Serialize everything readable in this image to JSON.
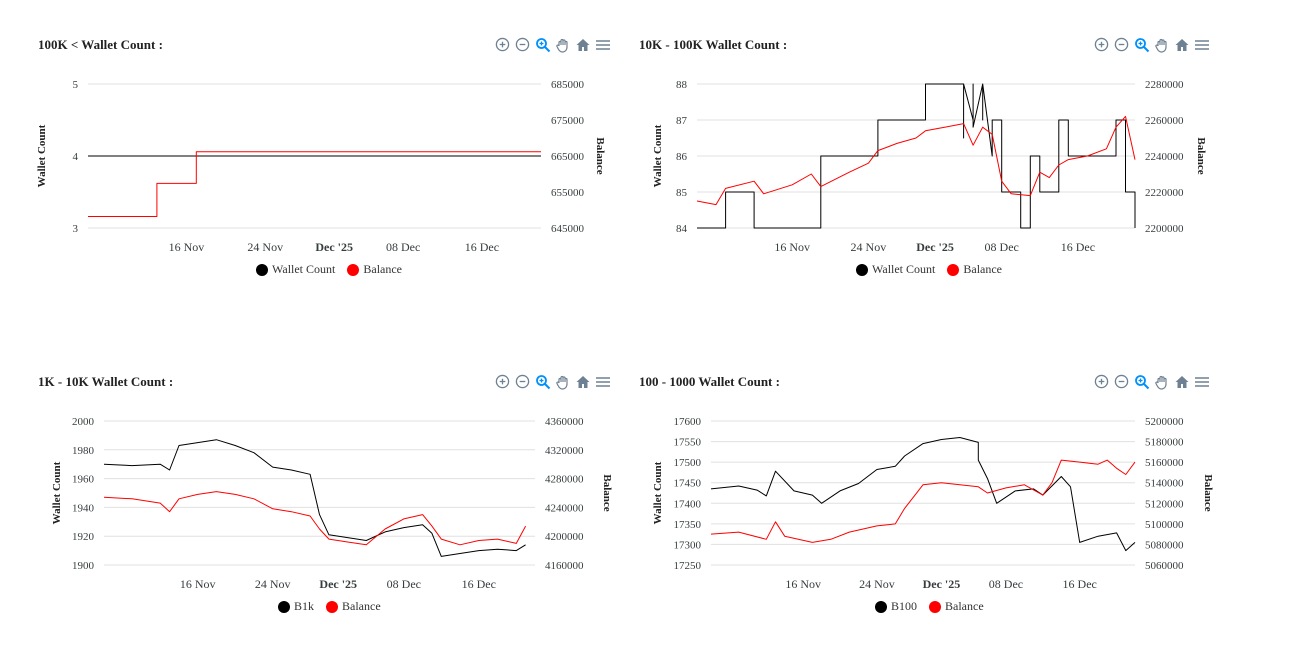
{
  "charts": [
    {
      "id": "c1",
      "title": "100K < Wallet Count :",
      "type": "line",
      "x_range": [
        "2025-11-06",
        "2025-12-22"
      ],
      "x_ticks": [
        "16 Nov",
        "24 Nov",
        "Dec '25",
        "08 Dec",
        "16 Dec"
      ],
      "y_left": {
        "label": "Wallet Count",
        "min": 3,
        "max": 5,
        "ticks": [
          "5",
          "4",
          "3"
        ]
      },
      "y_right": {
        "label": "Balance",
        "min": 645000,
        "max": 685000,
        "ticks": [
          "685000",
          "675000",
          "665000",
          "655000",
          "645000"
        ]
      },
      "series": [
        {
          "name": "Wallet Count",
          "color": "#000000",
          "axis": "left",
          "points": [
            [
              "2025-11-06",
              4
            ],
            [
              "2025-12-22",
              4
            ]
          ]
        },
        {
          "name": "Balance",
          "color": "#ff0000",
          "axis": "right",
          "points": [
            [
              "2025-11-06",
              648200
            ],
            [
              "2025-11-13",
              648200
            ],
            [
              "2025-11-13",
              657400
            ],
            [
              "2025-11-17",
              657400
            ],
            [
              "2025-11-17",
              666200
            ],
            [
              "2025-12-22",
              666200
            ]
          ]
        }
      ]
    },
    {
      "id": "c2",
      "title": "10K - 100K Wallet Count :",
      "type": "line",
      "x_range": [
        "2025-11-06",
        "2025-12-22"
      ],
      "x_ticks": [
        "16 Nov",
        "24 Nov",
        "Dec '25",
        "08 Dec",
        "16 Dec"
      ],
      "y_left": {
        "label": "Wallet Count",
        "min": 84,
        "max": 88,
        "ticks": [
          "88",
          "87",
          "86",
          "85",
          "84"
        ]
      },
      "y_right": {
        "label": "Balance",
        "min": 2200000,
        "max": 2280000,
        "ticks": [
          "2280000",
          "2260000",
          "2240000",
          "2220000",
          "2200000"
        ]
      },
      "series": [
        {
          "name": "Wallet Count",
          "color": "#000000",
          "axis": "left",
          "points": [
            [
              "2025-11-06",
              84
            ],
            [
              "2025-11-09",
              84
            ],
            [
              "2025-11-09",
              85
            ],
            [
              "2025-11-12",
              85
            ],
            [
              "2025-11-12",
              84
            ],
            [
              "2025-11-19",
              84
            ],
            [
              "2025-11-19",
              86
            ],
            [
              "2025-11-25",
              86
            ],
            [
              "2025-11-25",
              87
            ],
            [
              "2025-11-30",
              87
            ],
            [
              "2025-11-30",
              88
            ],
            [
              "2025-12-04",
              88
            ],
            [
              "2025-12-04",
              86.5
            ],
            [
              "2025-12-04",
              88
            ],
            [
              "2025-12-05",
              87
            ],
            [
              "2025-12-05",
              88
            ],
            [
              "2025-12-05",
              86.8
            ],
            [
              "2025-12-06",
              88
            ],
            [
              "2025-12-06",
              87
            ],
            [
              "2025-12-06",
              88
            ],
            [
              "2025-12-07",
              86
            ],
            [
              "2025-12-07",
              87
            ],
            [
              "2025-12-08",
              87
            ],
            [
              "2025-12-08",
              85
            ],
            [
              "2025-12-10",
              85
            ],
            [
              "2025-12-10",
              84
            ],
            [
              "2025-12-11",
              84
            ],
            [
              "2025-12-11",
              86
            ],
            [
              "2025-12-12",
              86
            ],
            [
              "2025-12-12",
              85
            ],
            [
              "2025-12-14",
              85
            ],
            [
              "2025-12-14",
              87
            ],
            [
              "2025-12-15",
              87
            ],
            [
              "2025-12-15",
              86
            ],
            [
              "2025-12-20",
              86
            ],
            [
              "2025-12-20",
              87
            ],
            [
              "2025-12-21",
              87
            ],
            [
              "2025-12-21",
              85
            ],
            [
              "2025-12-22",
              85
            ],
            [
              "2025-12-22",
              84
            ]
          ]
        },
        {
          "name": "Balance",
          "color": "#ff0000",
          "axis": "right",
          "points": [
            [
              "2025-11-06",
              2215000
            ],
            [
              "2025-11-08",
              2213000
            ],
            [
              "2025-11-09",
              2222000
            ],
            [
              "2025-11-12",
              2226000
            ],
            [
              "2025-11-13",
              2219000
            ],
            [
              "2025-11-16",
              2224000
            ],
            [
              "2025-11-18",
              2230000
            ],
            [
              "2025-11-19",
              2223000
            ],
            [
              "2025-11-22",
              2231000
            ],
            [
              "2025-11-24",
              2236000
            ],
            [
              "2025-11-25",
              2243000
            ],
            [
              "2025-11-27",
              2247000
            ],
            [
              "2025-11-29",
              2250000
            ],
            [
              "2025-11-30",
              2254000
            ],
            [
              "2025-12-02",
              2256000
            ],
            [
              "2025-12-04",
              2258000
            ],
            [
              "2025-12-05",
              2246000
            ],
            [
              "2025-12-06",
              2256000
            ],
            [
              "2025-12-07",
              2252000
            ],
            [
              "2025-12-08",
              2226000
            ],
            [
              "2025-12-09",
              2219000
            ],
            [
              "2025-12-11",
              2218000
            ],
            [
              "2025-12-12",
              2231000
            ],
            [
              "2025-12-13",
              2228000
            ],
            [
              "2025-12-14",
              2235000
            ],
            [
              "2025-12-15",
              2238000
            ],
            [
              "2025-12-17",
              2240000
            ],
            [
              "2025-12-19",
              2244000
            ],
            [
              "2025-12-20",
              2256000
            ],
            [
              "2025-12-21",
              2262000
            ],
            [
              "2025-12-22",
              2238000
            ]
          ]
        }
      ]
    },
    {
      "id": "c3",
      "title": "1K - 10K Wallet Count :",
      "type": "line",
      "x_range": [
        "2025-11-06",
        "2025-12-22"
      ],
      "x_ticks": [
        "16 Nov",
        "24 Nov",
        "Dec '25",
        "08 Dec",
        "16 Dec"
      ],
      "y_left": {
        "label": "Wallet Count",
        "min": 1900,
        "max": 2000,
        "ticks": [
          "2000",
          "1980",
          "1960",
          "1940",
          "1920",
          "1900"
        ]
      },
      "y_right": {
        "label": "Balance",
        "min": 4160000,
        "max": 4360000,
        "ticks": [
          "4360000",
          "4320000",
          "4280000",
          "4240000",
          "4200000",
          "4160000"
        ]
      },
      "series": [
        {
          "name": "B1k",
          "color": "#000000",
          "axis": "left",
          "points": [
            [
              "2025-11-06",
              1970
            ],
            [
              "2025-11-09",
              1969
            ],
            [
              "2025-11-12",
              1970
            ],
            [
              "2025-11-13",
              1966
            ],
            [
              "2025-11-14",
              1983
            ],
            [
              "2025-11-16",
              1985
            ],
            [
              "2025-11-18",
              1987
            ],
            [
              "2025-11-20",
              1983
            ],
            [
              "2025-11-22",
              1978
            ],
            [
              "2025-11-24",
              1968
            ],
            [
              "2025-11-26",
              1966
            ],
            [
              "2025-11-28",
              1963
            ],
            [
              "2025-11-29",
              1935
            ],
            [
              "2025-11-30",
              1921
            ],
            [
              "2025-12-02",
              1919
            ],
            [
              "2025-12-04",
              1917
            ],
            [
              "2025-12-06",
              1923
            ],
            [
              "2025-12-08",
              1926
            ],
            [
              "2025-12-10",
              1928
            ],
            [
              "2025-12-11",
              1922
            ],
            [
              "2025-12-12",
              1906
            ],
            [
              "2025-12-14",
              1908
            ],
            [
              "2025-12-16",
              1910
            ],
            [
              "2025-12-18",
              1911
            ],
            [
              "2025-12-20",
              1910
            ],
            [
              "2025-12-21",
              1914
            ]
          ]
        },
        {
          "name": "Balance",
          "color": "#ff0000",
          "axis": "right",
          "points": [
            [
              "2025-11-06",
              4254000
            ],
            [
              "2025-11-09",
              4252000
            ],
            [
              "2025-11-12",
              4246000
            ],
            [
              "2025-11-13",
              4234000
            ],
            [
              "2025-11-14",
              4252000
            ],
            [
              "2025-11-16",
              4258000
            ],
            [
              "2025-11-18",
              4262000
            ],
            [
              "2025-11-20",
              4258000
            ],
            [
              "2025-11-22",
              4252000
            ],
            [
              "2025-11-24",
              4238000
            ],
            [
              "2025-11-26",
              4234000
            ],
            [
              "2025-11-28",
              4228000
            ],
            [
              "2025-11-29",
              4210000
            ],
            [
              "2025-11-30",
              4196000
            ],
            [
              "2025-12-02",
              4192000
            ],
            [
              "2025-12-04",
              4188000
            ],
            [
              "2025-12-06",
              4210000
            ],
            [
              "2025-12-08",
              4224000
            ],
            [
              "2025-12-10",
              4230000
            ],
            [
              "2025-12-11",
              4214000
            ],
            [
              "2025-12-12",
              4196000
            ],
            [
              "2025-12-14",
              4188000
            ],
            [
              "2025-12-16",
              4194000
            ],
            [
              "2025-12-18",
              4196000
            ],
            [
              "2025-12-20",
              4190000
            ],
            [
              "2025-12-21",
              4214000
            ]
          ]
        }
      ]
    },
    {
      "id": "c4",
      "title": "100 - 1000 Wallet Count :",
      "type": "line",
      "x_range": [
        "2025-11-06",
        "2025-12-22"
      ],
      "x_ticks": [
        "16 Nov",
        "24 Nov",
        "Dec '25",
        "08 Dec",
        "16 Dec"
      ],
      "y_left": {
        "label": "Wallet Count",
        "min": 17250,
        "max": 17600,
        "ticks": [
          "17600",
          "17550",
          "17500",
          "17450",
          "17400",
          "17350",
          "17300",
          "17250"
        ]
      },
      "y_right": {
        "label": "Balance",
        "min": 5060000,
        "max": 5200000,
        "ticks": [
          "5200000",
          "5180000",
          "5160000",
          "5140000",
          "5120000",
          "5100000",
          "5080000",
          "5060000"
        ]
      },
      "series": [
        {
          "name": "B100",
          "color": "#000000",
          "axis": "left",
          "points": [
            [
              "2025-11-06",
              17435
            ],
            [
              "2025-11-09",
              17442
            ],
            [
              "2025-11-11",
              17432
            ],
            [
              "2025-11-12",
              17418
            ],
            [
              "2025-11-13",
              17478
            ],
            [
              "2025-11-15",
              17430
            ],
            [
              "2025-11-17",
              17420
            ],
            [
              "2025-11-18",
              17400
            ],
            [
              "2025-11-20",
              17430
            ],
            [
              "2025-11-22",
              17448
            ],
            [
              "2025-11-24",
              17482
            ],
            [
              "2025-11-26",
              17490
            ],
            [
              "2025-11-27",
              17515
            ],
            [
              "2025-11-29",
              17545
            ],
            [
              "2025-12-01",
              17555
            ],
            [
              "2025-12-03",
              17560
            ],
            [
              "2025-12-05",
              17548
            ],
            [
              "2025-12-05",
              17505
            ],
            [
              "2025-12-06",
              17460
            ],
            [
              "2025-12-07",
              17400
            ],
            [
              "2025-12-09",
              17430
            ],
            [
              "2025-12-11",
              17435
            ],
            [
              "2025-12-12",
              17420
            ],
            [
              "2025-12-14",
              17465
            ],
            [
              "2025-12-15",
              17440
            ],
            [
              "2025-12-16",
              17305
            ],
            [
              "2025-12-18",
              17320
            ],
            [
              "2025-12-20",
              17328
            ],
            [
              "2025-12-21",
              17285
            ],
            [
              "2025-12-22",
              17305
            ]
          ]
        },
        {
          "name": "Balance",
          "color": "#ff0000",
          "axis": "right",
          "points": [
            [
              "2025-11-06",
              5090000
            ],
            [
              "2025-11-09",
              5092000
            ],
            [
              "2025-11-12",
              5085000
            ],
            [
              "2025-11-13",
              5102000
            ],
            [
              "2025-11-14",
              5088000
            ],
            [
              "2025-11-17",
              5082000
            ],
            [
              "2025-11-19",
              5085000
            ],
            [
              "2025-11-21",
              5092000
            ],
            [
              "2025-11-24",
              5098000
            ],
            [
              "2025-11-26",
              5100000
            ],
            [
              "2025-11-27",
              5115000
            ],
            [
              "2025-11-29",
              5138000
            ],
            [
              "2025-12-01",
              5140000
            ],
            [
              "2025-12-03",
              5138000
            ],
            [
              "2025-12-05",
              5136000
            ],
            [
              "2025-12-06",
              5130000
            ],
            [
              "2025-12-08",
              5135000
            ],
            [
              "2025-12-10",
              5138000
            ],
            [
              "2025-12-12",
              5128000
            ],
            [
              "2025-12-13",
              5140000
            ],
            [
              "2025-12-14",
              5162000
            ],
            [
              "2025-12-16",
              5160000
            ],
            [
              "2025-12-18",
              5158000
            ],
            [
              "2025-12-19",
              5162000
            ],
            [
              "2025-12-20",
              5154000
            ],
            [
              "2025-12-21",
              5148000
            ],
            [
              "2025-12-22",
              5160000
            ]
          ]
        }
      ]
    }
  ]
}
